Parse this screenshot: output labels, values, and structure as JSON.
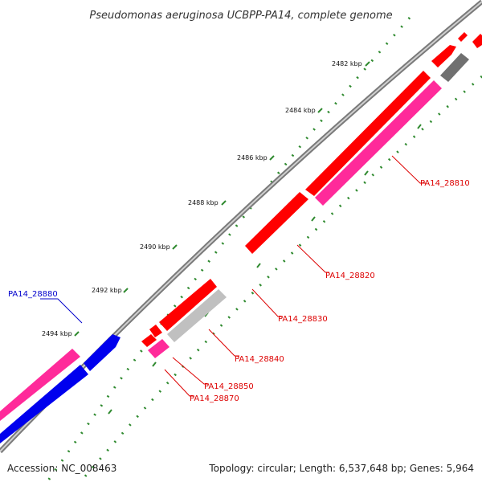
{
  "title": "Pseudomonas aeruginosa UCBPP-PA14, complete genome",
  "accession": "Accession: NC_008463",
  "topology": "Topology: circular; Length: 6,537,648 bp; Genes: 5,964",
  "kbp_ticks": [
    "2482 kbp",
    "2484 kbp",
    "2486 kbp",
    "2488 kbp",
    "2490 kbp",
    "2492 kbp",
    "2494 kbp"
  ],
  "gene_labels": [
    {
      "text": "PA14_28810",
      "color": "#dd0000"
    },
    {
      "text": "PA14_28820",
      "color": "#dd0000"
    },
    {
      "text": "PA14_28830",
      "color": "#dd0000"
    },
    {
      "text": "PA14_28840",
      "color": "#dd0000"
    },
    {
      "text": "PA14_28850",
      "color": "#dd0000"
    },
    {
      "text": "PA14_28870",
      "color": "#dd0000"
    },
    {
      "text": "PA14_28880",
      "color": "#0000cc"
    }
  ],
  "colors": {
    "red": "#ff0000",
    "pink": "#ff2a9a",
    "blue": "#0000ee",
    "gray": "#c0c0c0",
    "darkgray": "#707070",
    "backbone": "#888888",
    "tick_green": "#2f8a2f"
  }
}
